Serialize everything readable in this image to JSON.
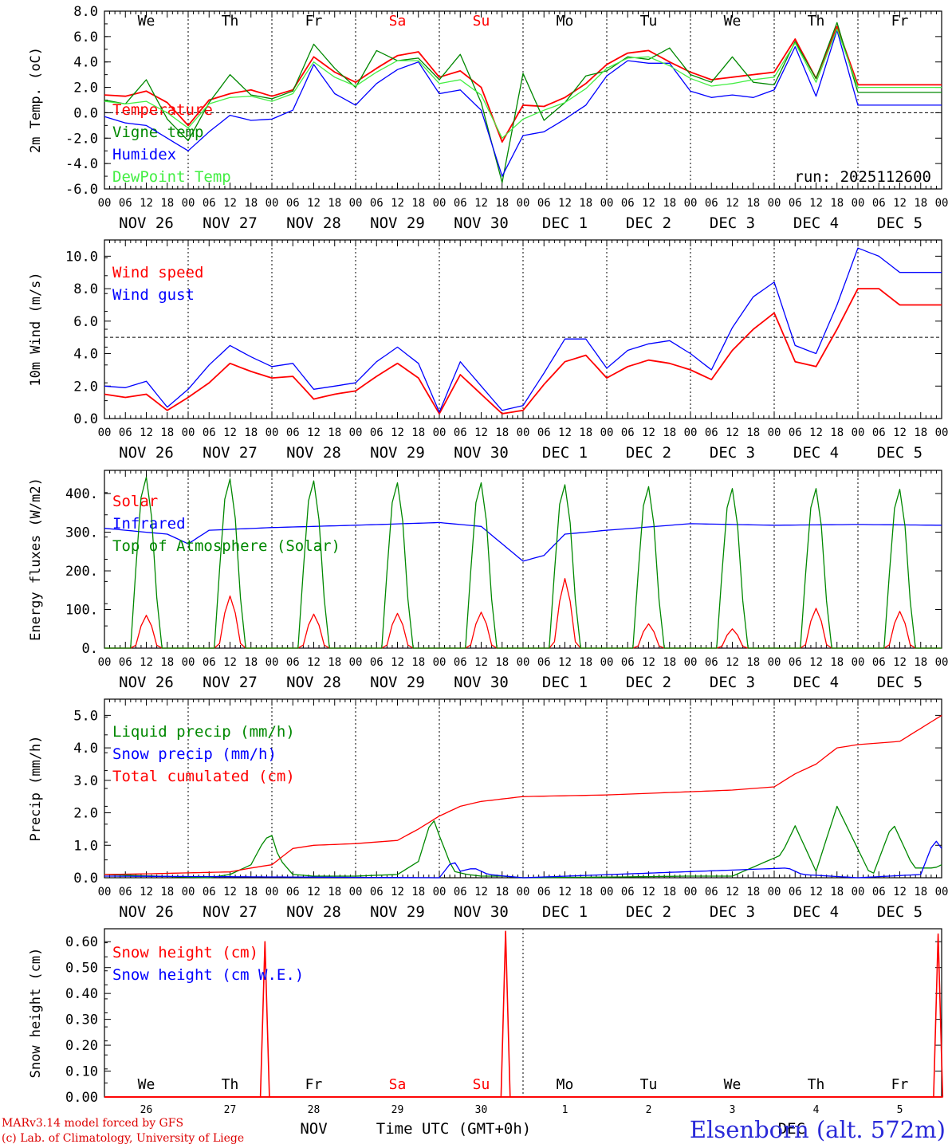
{
  "chart_data": [
    {
      "type": "line",
      "ylabel": "2m Temp. (oC)",
      "ylim": [
        -6,
        8
      ],
      "yticks": [
        "8.0",
        "6.0",
        "4.0",
        "2.0",
        "0.0",
        "-2.0",
        "-4.0",
        "-6.0"
      ],
      "ref_line": 0,
      "legend_position": "top-left",
      "annotation": "run: 2025112600",
      "x_hours": [
        0,
        6,
        12,
        18,
        24,
        30,
        36,
        42,
        48,
        54,
        60,
        66,
        72,
        78,
        84,
        90,
        96,
        102,
        108,
        114,
        120,
        126,
        132,
        138,
        144,
        150,
        156,
        162,
        168,
        174,
        180,
        186,
        192,
        198,
        204,
        210,
        216,
        222,
        228,
        234,
        240
      ],
      "series": [
        {
          "name": "Temperature",
          "color": "#ff0000",
          "values": [
            1.4,
            1.3,
            1.7,
            0.8,
            -1.0,
            1.0,
            1.5,
            1.8,
            1.3,
            1.8,
            4.4,
            3.2,
            2.4,
            3.5,
            4.5,
            4.8,
            2.8,
            3.3,
            2.0,
            -2.3,
            0.6,
            0.5,
            1.2,
            2.3,
            3.8,
            4.7,
            4.9,
            4.0,
            3.2,
            2.6,
            2.8,
            3.0,
            3.2,
            5.8,
            2.7,
            6.8,
            2.2,
            2.2,
            2.2,
            2.2,
            2.2
          ]
        },
        {
          "name": "Vigne temp",
          "color": "#008800",
          "values": [
            1.0,
            0.7,
            2.6,
            -0.5,
            -2.2,
            0.8,
            3.0,
            1.4,
            1.1,
            1.7,
            5.4,
            3.5,
            2.0,
            4.9,
            4.1,
            4.3,
            2.6,
            4.6,
            0.8,
            -5.5,
            3.1,
            -0.6,
            0.8,
            2.9,
            3.3,
            4.4,
            4.2,
            5.1,
            3.0,
            2.4,
            4.4,
            2.4,
            2.2,
            5.6,
            2.7,
            7.1,
            1.6,
            1.6,
            1.6,
            1.6,
            1.6
          ]
        },
        {
          "name": "Humidex",
          "color": "#0000ff",
          "values": [
            -0.3,
            -0.8,
            -1.0,
            -2.0,
            -3.0,
            -1.5,
            -0.2,
            -0.6,
            -0.5,
            0.2,
            3.8,
            1.5,
            0.6,
            2.3,
            3.4,
            4.0,
            1.5,
            1.8,
            0.2,
            -5.0,
            -1.8,
            -1.5,
            -0.5,
            0.6,
            2.9,
            4.1,
            3.9,
            3.9,
            1.7,
            1.2,
            1.4,
            1.2,
            1.8,
            5.2,
            1.3,
            6.5,
            0.6,
            0.6,
            0.6,
            0.6,
            0.6
          ]
        },
        {
          "name": "DewPoint Temp",
          "color": "#44ee44",
          "values": [
            0.9,
            0.7,
            0.9,
            0.0,
            -1.2,
            0.7,
            1.2,
            1.3,
            0.9,
            1.5,
            4.0,
            2.8,
            2.1,
            3.2,
            4.1,
            4.1,
            2.3,
            2.6,
            1.4,
            -2.0,
            -0.5,
            0.2,
            0.8,
            1.9,
            3.5,
            4.3,
            4.4,
            3.7,
            2.7,
            2.1,
            2.3,
            2.6,
            2.8,
            5.5,
            2.4,
            6.6,
            2.0,
            2.0,
            2.0,
            2.0,
            2.0
          ]
        }
      ]
    },
    {
      "type": "line",
      "ylabel": "10m Wind (m/s)",
      "ylim": [
        0,
        11
      ],
      "yticks": [
        "10.0",
        "8.0",
        "6.0",
        "4.0",
        "2.0",
        "0.0"
      ],
      "ref_line": 5,
      "legend_position": "top-left",
      "x_hours": [
        0,
        6,
        12,
        18,
        24,
        30,
        36,
        42,
        48,
        54,
        60,
        66,
        72,
        78,
        84,
        90,
        96,
        102,
        108,
        114,
        120,
        126,
        132,
        138,
        144,
        150,
        156,
        162,
        168,
        174,
        180,
        186,
        192,
        198,
        204,
        210,
        216,
        222,
        228,
        234,
        240
      ],
      "series": [
        {
          "name": "Wind speed",
          "color": "#ff0000",
          "values": [
            1.5,
            1.3,
            1.5,
            0.5,
            1.3,
            2.2,
            3.4,
            2.9,
            2.5,
            2.6,
            1.2,
            1.5,
            1.7,
            2.6,
            3.4,
            2.5,
            0.3,
            2.7,
            1.5,
            0.3,
            0.5,
            2.1,
            3.5,
            3.9,
            2.5,
            3.2,
            3.6,
            3.4,
            3.0,
            2.4,
            4.2,
            5.5,
            6.5,
            3.5,
            3.2,
            5.5,
            8.0,
            8.0,
            7.0,
            7.0,
            7.0
          ]
        },
        {
          "name": "Wind gust",
          "color": "#0000ff",
          "values": [
            2.0,
            1.9,
            2.3,
            0.7,
            1.8,
            3.3,
            4.5,
            3.8,
            3.2,
            3.4,
            1.8,
            2.0,
            2.2,
            3.5,
            4.4,
            3.4,
            0.4,
            3.5,
            2.0,
            0.5,
            0.8,
            2.8,
            4.9,
            4.9,
            3.1,
            4.2,
            4.6,
            4.8,
            4.0,
            3.0,
            5.6,
            7.5,
            8.4,
            4.5,
            4.0,
            7.0,
            10.5,
            10.0,
            9.0,
            9.0,
            9.0
          ]
        }
      ]
    },
    {
      "type": "line",
      "ylabel": "Energy fluxes (W/m2)",
      "ylim": [
        0,
        460
      ],
      "yticks": [
        "400.",
        "300.",
        "200.",
        "100.",
        "0."
      ],
      "legend_position": "top-left",
      "series": [
        {
          "name": "Solar",
          "color": "#ff0000",
          "day_peaks": [
            85,
            135,
            88,
            90,
            93,
            180,
            63,
            50,
            103,
            95
          ]
        },
        {
          "name": "Infrared",
          "color": "#0000ff",
          "x_hours": [
            0,
            12,
            18,
            24,
            30,
            48,
            72,
            96,
            108,
            120,
            126,
            132,
            144,
            168,
            192,
            216,
            240
          ],
          "values": [
            310,
            300,
            295,
            270,
            305,
            312,
            318,
            325,
            315,
            225,
            240,
            295,
            305,
            322,
            318,
            320,
            318
          ]
        },
        {
          "name": "Top of Atmosphere (Solar)",
          "color": "#008800",
          "day_peaks": [
            445,
            440,
            435,
            430,
            430,
            425,
            420,
            415,
            415,
            413
          ]
        }
      ]
    },
    {
      "type": "line",
      "ylabel": "Precip (mm/h)",
      "ylim": [
        0,
        5.5
      ],
      "yticks": [
        "5.0",
        "4.0",
        "3.0",
        "2.0",
        "1.0",
        "0.0"
      ],
      "legend_position": "top-left",
      "series": [
        {
          "name": "Liquid precip (mm/h)",
          "color": "#008800",
          "x_hours": [
            0,
            30,
            36,
            42,
            46,
            48,
            50,
            54,
            60,
            66,
            72,
            84,
            90,
            94,
            96,
            100,
            104,
            108,
            114,
            120,
            144,
            168,
            180,
            194,
            198,
            204,
            210,
            220,
            226,
            232,
            238,
            240
          ],
          "values": [
            0.1,
            0.0,
            0.1,
            0.4,
            1.2,
            1.3,
            0.6,
            0.1,
            0.05,
            0.05,
            0.05,
            0.1,
            0.5,
            1.9,
            1.3,
            0.2,
            0.1,
            0.05,
            0.05,
            0.0,
            0.02,
            0.05,
            0.05,
            0.7,
            1.6,
            0.2,
            2.2,
            0.0,
            1.7,
            0.3,
            0.3,
            0.4
          ]
        },
        {
          "name": "Snow precip (mm/h)",
          "color": "#0000ff",
          "x_hours": [
            0,
            96,
            100,
            102,
            106,
            110,
            120,
            196,
            200,
            216,
            234,
            238,
            240
          ],
          "values": [
            0.05,
            0.0,
            0.55,
            0.2,
            0.3,
            0.1,
            0.0,
            0.3,
            0.1,
            0.0,
            0.1,
            1.2,
            0.9
          ]
        },
        {
          "name": "Total cumulated (cm)",
          "color": "#ff0000",
          "x_hours": [
            0,
            12,
            24,
            36,
            42,
            48,
            54,
            60,
            72,
            84,
            90,
            96,
            102,
            108,
            120,
            144,
            168,
            180,
            192,
            198,
            204,
            210,
            216,
            228,
            234,
            240
          ],
          "values": [
            0.1,
            0.12,
            0.15,
            0.18,
            0.3,
            0.4,
            0.9,
            1.0,
            1.05,
            1.15,
            1.5,
            1.9,
            2.2,
            2.35,
            2.5,
            2.55,
            2.65,
            2.7,
            2.8,
            3.2,
            3.5,
            4.0,
            4.1,
            4.2,
            4.6,
            5.0
          ]
        }
      ]
    },
    {
      "type": "line",
      "ylabel": "Snow height (cm)",
      "ylim": [
        0,
        0.65
      ],
      "yticks": [
        "0.60",
        "0.50",
        "0.40",
        "0.30",
        "0.20",
        "0.10",
        "0.00"
      ],
      "legend_position": "top-left",
      "series": [
        {
          "name": "Snow height (cm)",
          "color": "#ff0000",
          "spikes": [
            {
              "hour": 46,
              "value": 0.6
            },
            {
              "hour": 115,
              "value": 0.64
            },
            {
              "hour": 239,
              "value": 0.63
            }
          ]
        },
        {
          "name": "Snow height (cm W.E.)",
          "color": "#0000ff",
          "spikes": []
        }
      ]
    }
  ],
  "labels": {
    "weekdays": [
      "We",
      "Th",
      "Fr",
      "Sa",
      "Su",
      "Mo",
      "Tu",
      "We",
      "Th",
      "Fr"
    ],
    "weekend_color": "#ff0000",
    "weekday_color": "#000000",
    "hour_ticks": [
      "00",
      "06",
      "12",
      "18"
    ],
    "dates": [
      "NOV 26",
      "NOV 27",
      "NOV 28",
      "NOV 29",
      "NOV 30",
      "DEC  1",
      "DEC  2",
      "DEC  3",
      "DEC  4",
      "DEC  5"
    ],
    "day_numbers": [
      "26",
      "27",
      "28",
      "29",
      "30",
      "1",
      "2",
      "3",
      "4",
      "5"
    ],
    "month_nov": "NOV",
    "month_dec": "DEC",
    "time_axis": "Time UTC (GMT+0h)"
  },
  "credit_line1": "MARv3.14 model forced by GFS",
  "credit_line2": "(c) Lab. of Climatology, University of Liege",
  "station": "Elsenborn (alt. 572m)"
}
